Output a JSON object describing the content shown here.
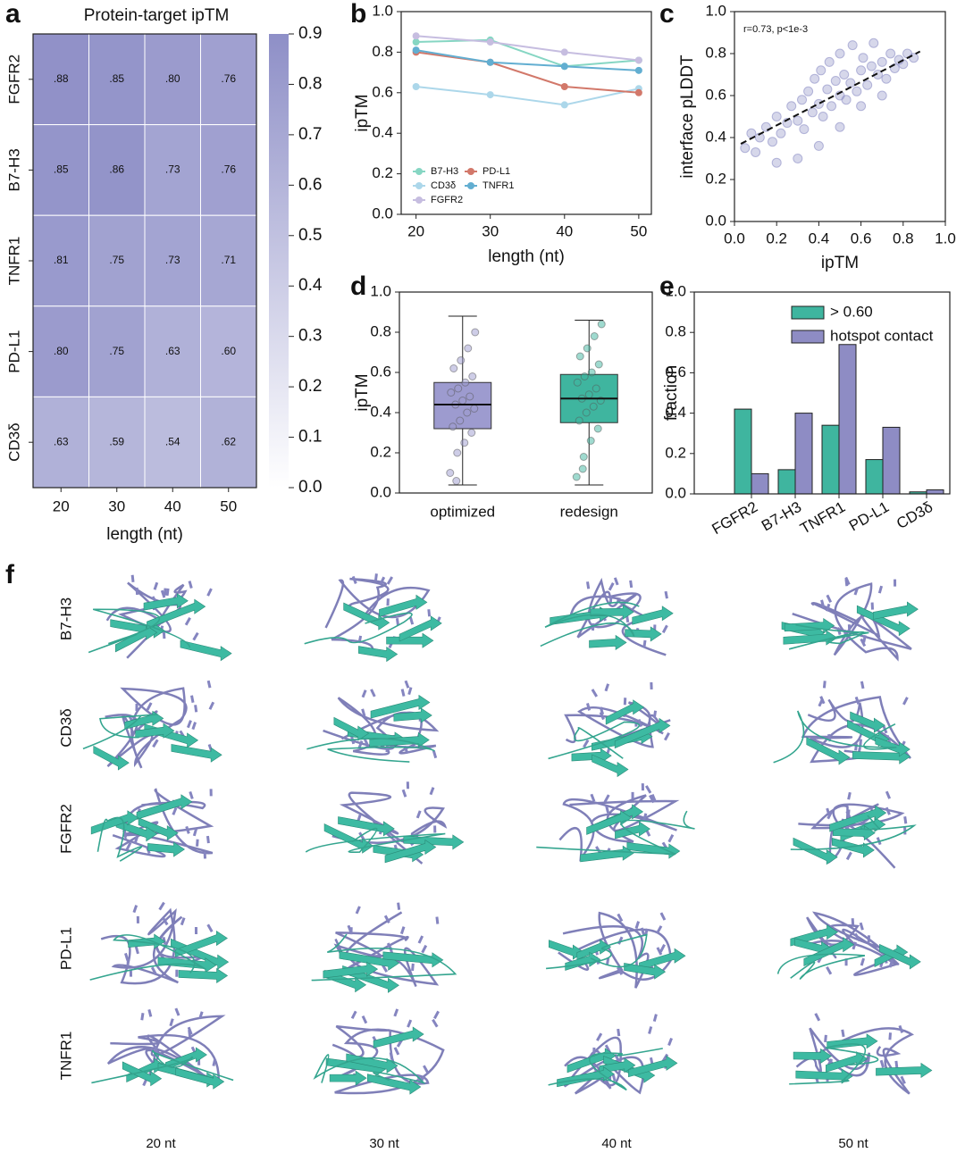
{
  "chart_data": [
    {
      "type": "heatmap",
      "panel": "a",
      "title": "Protein-target ipTM",
      "x": [
        20,
        30,
        40,
        50
      ],
      "y": [
        "FGFR2",
        "B7-H3",
        "TNFR1",
        "PD-L1",
        "CD3δ"
      ],
      "values": [
        [
          0.88,
          0.85,
          0.8,
          0.76
        ],
        [
          0.85,
          0.86,
          0.73,
          0.76
        ],
        [
          0.81,
          0.75,
          0.73,
          0.71
        ],
        [
          0.8,
          0.75,
          0.63,
          0.6
        ],
        [
          0.63,
          0.59,
          0.54,
          0.62
        ]
      ],
      "value_labels": [
        [
          ".88",
          ".85",
          ".80",
          ".76"
        ],
        [
          ".85",
          ".86",
          ".73",
          ".76"
        ],
        [
          ".81",
          ".75",
          ".73",
          ".71"
        ],
        [
          ".80",
          ".75",
          ".63",
          ".60"
        ],
        [
          ".63",
          ".59",
          ".54",
          ".62"
        ]
      ],
      "xlabel": "length (nt)",
      "colormap": [
        "#ffffff",
        "#8e8fc7"
      ],
      "colorbar_lim": [
        0,
        0.9
      ],
      "colorbar_ticks": [
        {
          "value": 0,
          "label": "0.0"
        },
        {
          "value": 0.1,
          "label": "0.1"
        },
        {
          "value": 0.2,
          "label": "0.2"
        },
        {
          "value": 0.3,
          "label": "0.3"
        },
        {
          "value": 0.4,
          "label": "0.4"
        },
        {
          "value": 0.5,
          "label": "0.5"
        },
        {
          "value": 0.6,
          "label": "0.6"
        },
        {
          "value": 0.7,
          "label": "0.7"
        },
        {
          "value": 0.8,
          "label": "0.8"
        },
        {
          "value": 0.9,
          "label": "0.9"
        }
      ]
    },
    {
      "type": "line",
      "panel": "b",
      "x": [
        20,
        30,
        40,
        50
      ],
      "xlim": [
        18,
        51.7
      ],
      "xticks": [
        20,
        30,
        40,
        50
      ],
      "ylim": [
        0,
        1
      ],
      "yticks": [
        {
          "value": 0,
          "label": "0.0"
        },
        {
          "value": 0.2,
          "label": "0.2"
        },
        {
          "value": 0.4,
          "label": "0.4"
        },
        {
          "value": 0.6,
          "label": "0.6"
        },
        {
          "value": 0.8,
          "label": "0.8"
        },
        {
          "value": 1,
          "label": "1.0"
        }
      ],
      "xlabel": "length (nt)",
      "ylabel": "ipTM",
      "legend": "lower left",
      "series": [
        {
          "name": "B7-H3",
          "color": "#86d6c3",
          "values": [
            0.85,
            0.86,
            0.73,
            0.76
          ]
        },
        {
          "name": "CD3δ",
          "color": "#acd7ea",
          "values": [
            0.63,
            0.59,
            0.54,
            0.62
          ]
        },
        {
          "name": "FGFR2",
          "color": "#c6bde0",
          "values": [
            0.88,
            0.85,
            0.8,
            0.76
          ]
        },
        {
          "name": "PD-L1",
          "color": "#d2786a",
          "values": [
            0.8,
            0.75,
            0.63,
            0.6
          ]
        },
        {
          "name": "TNFR1",
          "color": "#62aed1",
          "values": [
            0.81,
            0.75,
            0.73,
            0.71
          ]
        }
      ]
    },
    {
      "type": "scatter",
      "panel": "c",
      "color": "#8a8cc4",
      "annotation": "r=0.73, p<1e-3",
      "xlabel": "ipTM",
      "ylabel": "interface pLDDT",
      "xlim": [
        0,
        1
      ],
      "ylim": [
        0,
        1
      ],
      "xticks": [
        {
          "value": 0,
          "label": "0.0"
        },
        {
          "value": 0.2,
          "label": "0.2"
        },
        {
          "value": 0.4,
          "label": "0.4"
        },
        {
          "value": 0.6,
          "label": "0.6"
        },
        {
          "value": 0.8,
          "label": "0.8"
        },
        {
          "value": 1,
          "label": "1.0"
        }
      ],
      "yticks": [
        {
          "value": 0,
          "label": "0.0"
        },
        {
          "value": 0.2,
          "label": "0.2"
        },
        {
          "value": 0.4,
          "label": "0.4"
        },
        {
          "value": 0.6,
          "label": "0.6"
        },
        {
          "value": 0.8,
          "label": "0.8"
        },
        {
          "value": 1,
          "label": "1.0"
        }
      ],
      "x": [
        0.05,
        0.08,
        0.1,
        0.12,
        0.15,
        0.18,
        0.2,
        0.22,
        0.25,
        0.27,
        0.3,
        0.32,
        0.33,
        0.35,
        0.37,
        0.38,
        0.4,
        0.41,
        0.42,
        0.44,
        0.45,
        0.46,
        0.48,
        0.5,
        0.5,
        0.52,
        0.53,
        0.55,
        0.56,
        0.58,
        0.6,
        0.61,
        0.63,
        0.65,
        0.66,
        0.68,
        0.7,
        0.72,
        0.74,
        0.76,
        0.78,
        0.8,
        0.82,
        0.85,
        0.3,
        0.4,
        0.5,
        0.6,
        0.2,
        0.7
      ],
      "y": [
        0.35,
        0.42,
        0.33,
        0.4,
        0.45,
        0.38,
        0.5,
        0.42,
        0.47,
        0.55,
        0.48,
        0.58,
        0.44,
        0.62,
        0.52,
        0.68,
        0.56,
        0.72,
        0.5,
        0.63,
        0.76,
        0.55,
        0.67,
        0.6,
        0.8,
        0.7,
        0.58,
        0.66,
        0.84,
        0.62,
        0.72,
        0.78,
        0.65,
        0.74,
        0.85,
        0.7,
        0.76,
        0.68,
        0.8,
        0.73,
        0.77,
        0.75,
        0.8,
        0.78,
        0.3,
        0.36,
        0.45,
        0.55,
        0.28,
        0.6
      ],
      "fit": {
        "x": [
          0.03,
          0.88
        ],
        "y": [
          0.37,
          0.81
        ]
      }
    },
    {
      "type": "box",
      "panel": "d",
      "categories": [
        "optimized",
        "redesign"
      ],
      "ylabel": "ipTM",
      "ylim": [
        0,
        1
      ],
      "yticks": [
        {
          "value": 0,
          "label": "0.0"
        },
        {
          "value": 0.2,
          "label": "0.2"
        },
        {
          "value": 0.4,
          "label": "0.4"
        },
        {
          "value": 0.6,
          "label": "0.6"
        },
        {
          "value": 0.8,
          "label": "0.8"
        },
        {
          "value": 1,
          "label": "1.0"
        }
      ],
      "boxes": [
        {
          "color": "#9d9bcf",
          "min": 0.04,
          "q1": 0.32,
          "median": 0.44,
          "q3": 0.55,
          "max": 0.88,
          "points": [
            0.1,
            0.2,
            0.25,
            0.3,
            0.33,
            0.36,
            0.4,
            0.42,
            0.44,
            0.46,
            0.48,
            0.5,
            0.52,
            0.55,
            0.58,
            0.62,
            0.66,
            0.72,
            0.8,
            0.06
          ]
        },
        {
          "color": "#3fb59f",
          "min": 0.04,
          "q1": 0.35,
          "median": 0.47,
          "q3": 0.59,
          "max": 0.86,
          "points": [
            0.08,
            0.18,
            0.26,
            0.32,
            0.36,
            0.4,
            0.43,
            0.46,
            0.47,
            0.49,
            0.52,
            0.55,
            0.58,
            0.6,
            0.64,
            0.68,
            0.72,
            0.78,
            0.84,
            0.12
          ]
        }
      ]
    },
    {
      "type": "bar",
      "panel": "e",
      "categories": [
        "FGFR2",
        "B7-H3",
        "TNFR1",
        "PD-L1",
        "CD3δ"
      ],
      "ylabel": "fraction",
      "ylim": [
        0,
        1
      ],
      "yticks": [
        {
          "value": 0,
          "label": "0.0"
        },
        {
          "value": 0.2,
          "label": "0.2"
        },
        {
          "value": 0.4,
          "label": "0.4"
        },
        {
          "value": 0.6,
          "label": "0.6"
        },
        {
          "value": 0.8,
          "label": "0.8"
        },
        {
          "value": 1,
          "label": "1.0"
        }
      ],
      "legend": "upper center",
      "series": [
        {
          "name": "> 0.60",
          "color": "#3fb59f",
          "values": [
            0.42,
            0.12,
            0.34,
            0.17,
            0.01
          ]
        },
        {
          "name": "hotspot contact",
          "color": "#8e8cc4",
          "values": [
            0.1,
            0.4,
            0.74,
            0.33,
            0.02
          ]
        }
      ]
    },
    {
      "type": "structure_grid",
      "panel": "f",
      "rows": [
        "B7-H3",
        "CD3δ",
        "FGFR2",
        "PD-L1",
        "TNFR1"
      ],
      "columns": [
        "20 nt",
        "30 nt",
        "40 nt",
        "50 nt"
      ]
    }
  ]
}
